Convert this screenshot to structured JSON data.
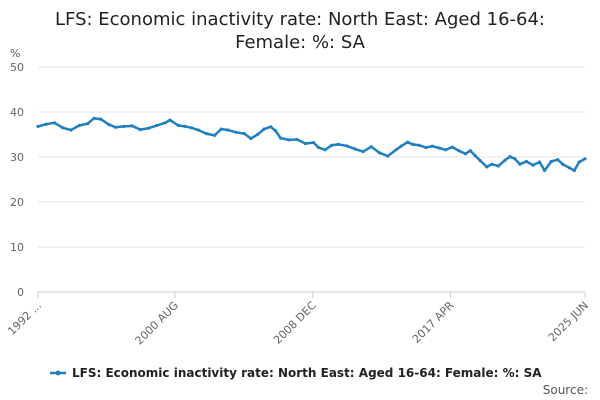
{
  "chart_data": {
    "type": "line",
    "title_lines": [
      "LFS: Economic inactivity rate: North East: Aged 16-64:",
      "Female: %: SA"
    ],
    "ylabel": "%",
    "ylim": [
      0,
      50
    ],
    "yticks": [
      0,
      10,
      20,
      30,
      40,
      50
    ],
    "x_range": [
      1992.3,
      2025.45
    ],
    "x_ticks": [
      {
        "label": "1992 ...",
        "x": 1992.3
      },
      {
        "label": "2000 AUG",
        "x": 2000.6
      },
      {
        "label": "2008 DEC",
        "x": 2008.95
      },
      {
        "label": "2017 APR",
        "x": 2017.3
      },
      {
        "label": "2025 JUN",
        "x": 2025.45
      }
    ],
    "series": [
      {
        "name": "LFS: Economic inactivity rate: North East: Aged 16-64: Female: %: SA",
        "color": "#1f7fbf",
        "points": [
          [
            1992.3,
            36.8
          ],
          [
            1992.8,
            37.3
          ],
          [
            1993.3,
            37.6
          ],
          [
            1993.8,
            36.5
          ],
          [
            1994.3,
            36.0
          ],
          [
            1994.8,
            37.0
          ],
          [
            1995.3,
            37.4
          ],
          [
            1995.7,
            38.6
          ],
          [
            1996.1,
            38.4
          ],
          [
            1996.6,
            37.2
          ],
          [
            1997.0,
            36.6
          ],
          [
            1997.5,
            36.8
          ],
          [
            1998.0,
            36.9
          ],
          [
            1998.5,
            36.1
          ],
          [
            1999.0,
            36.4
          ],
          [
            1999.5,
            37.0
          ],
          [
            2000.0,
            37.6
          ],
          [
            2000.3,
            38.2
          ],
          [
            2000.8,
            37.0
          ],
          [
            2001.2,
            36.8
          ],
          [
            2001.6,
            36.5
          ],
          [
            2002.0,
            36.0
          ],
          [
            2002.5,
            35.2
          ],
          [
            2003.0,
            34.8
          ],
          [
            2003.4,
            36.2
          ],
          [
            2003.8,
            36.0
          ],
          [
            2004.3,
            35.5
          ],
          [
            2004.8,
            35.2
          ],
          [
            2005.2,
            34.1
          ],
          [
            2005.6,
            35.0
          ],
          [
            2006.0,
            36.2
          ],
          [
            2006.4,
            36.7
          ],
          [
            2006.7,
            35.8
          ],
          [
            2007.0,
            34.2
          ],
          [
            2007.5,
            33.8
          ],
          [
            2008.0,
            33.9
          ],
          [
            2008.5,
            33.0
          ],
          [
            2009.0,
            33.2
          ],
          [
            2009.3,
            32.1
          ],
          [
            2009.7,
            31.6
          ],
          [
            2010.1,
            32.6
          ],
          [
            2010.5,
            32.8
          ],
          [
            2011.0,
            32.5
          ],
          [
            2011.5,
            31.8
          ],
          [
            2012.0,
            31.2
          ],
          [
            2012.5,
            32.3
          ],
          [
            2013.0,
            30.9
          ],
          [
            2013.5,
            30.2
          ],
          [
            2014.0,
            31.6
          ],
          [
            2014.3,
            32.4
          ],
          [
            2014.7,
            33.3
          ],
          [
            2015.0,
            32.8
          ],
          [
            2015.4,
            32.6
          ],
          [
            2015.8,
            32.1
          ],
          [
            2016.2,
            32.4
          ],
          [
            2016.6,
            32.0
          ],
          [
            2017.0,
            31.6
          ],
          [
            2017.4,
            32.2
          ],
          [
            2017.8,
            31.4
          ],
          [
            2018.2,
            30.7
          ],
          [
            2018.5,
            31.4
          ],
          [
            2018.8,
            30.3
          ],
          [
            2019.1,
            29.2
          ],
          [
            2019.5,
            27.8
          ],
          [
            2019.8,
            28.4
          ],
          [
            2020.2,
            28.0
          ],
          [
            2020.6,
            29.3
          ],
          [
            2020.9,
            30.1
          ],
          [
            2021.2,
            29.6
          ],
          [
            2021.5,
            28.4
          ],
          [
            2021.9,
            29.0
          ],
          [
            2022.3,
            28.2
          ],
          [
            2022.7,
            28.9
          ],
          [
            2023.0,
            27.0
          ],
          [
            2023.4,
            29.0
          ],
          [
            2023.8,
            29.4
          ],
          [
            2024.1,
            28.4
          ],
          [
            2024.5,
            27.6
          ],
          [
            2024.8,
            27.0
          ],
          [
            2025.1,
            28.9
          ],
          [
            2025.45,
            29.6
          ]
        ]
      }
    ],
    "legend": {
      "label": "LFS: Economic inactivity rate: North East: Aged 16-64: Female: %: SA",
      "position": "bottom"
    },
    "source_label": "Source:",
    "grid": true
  }
}
